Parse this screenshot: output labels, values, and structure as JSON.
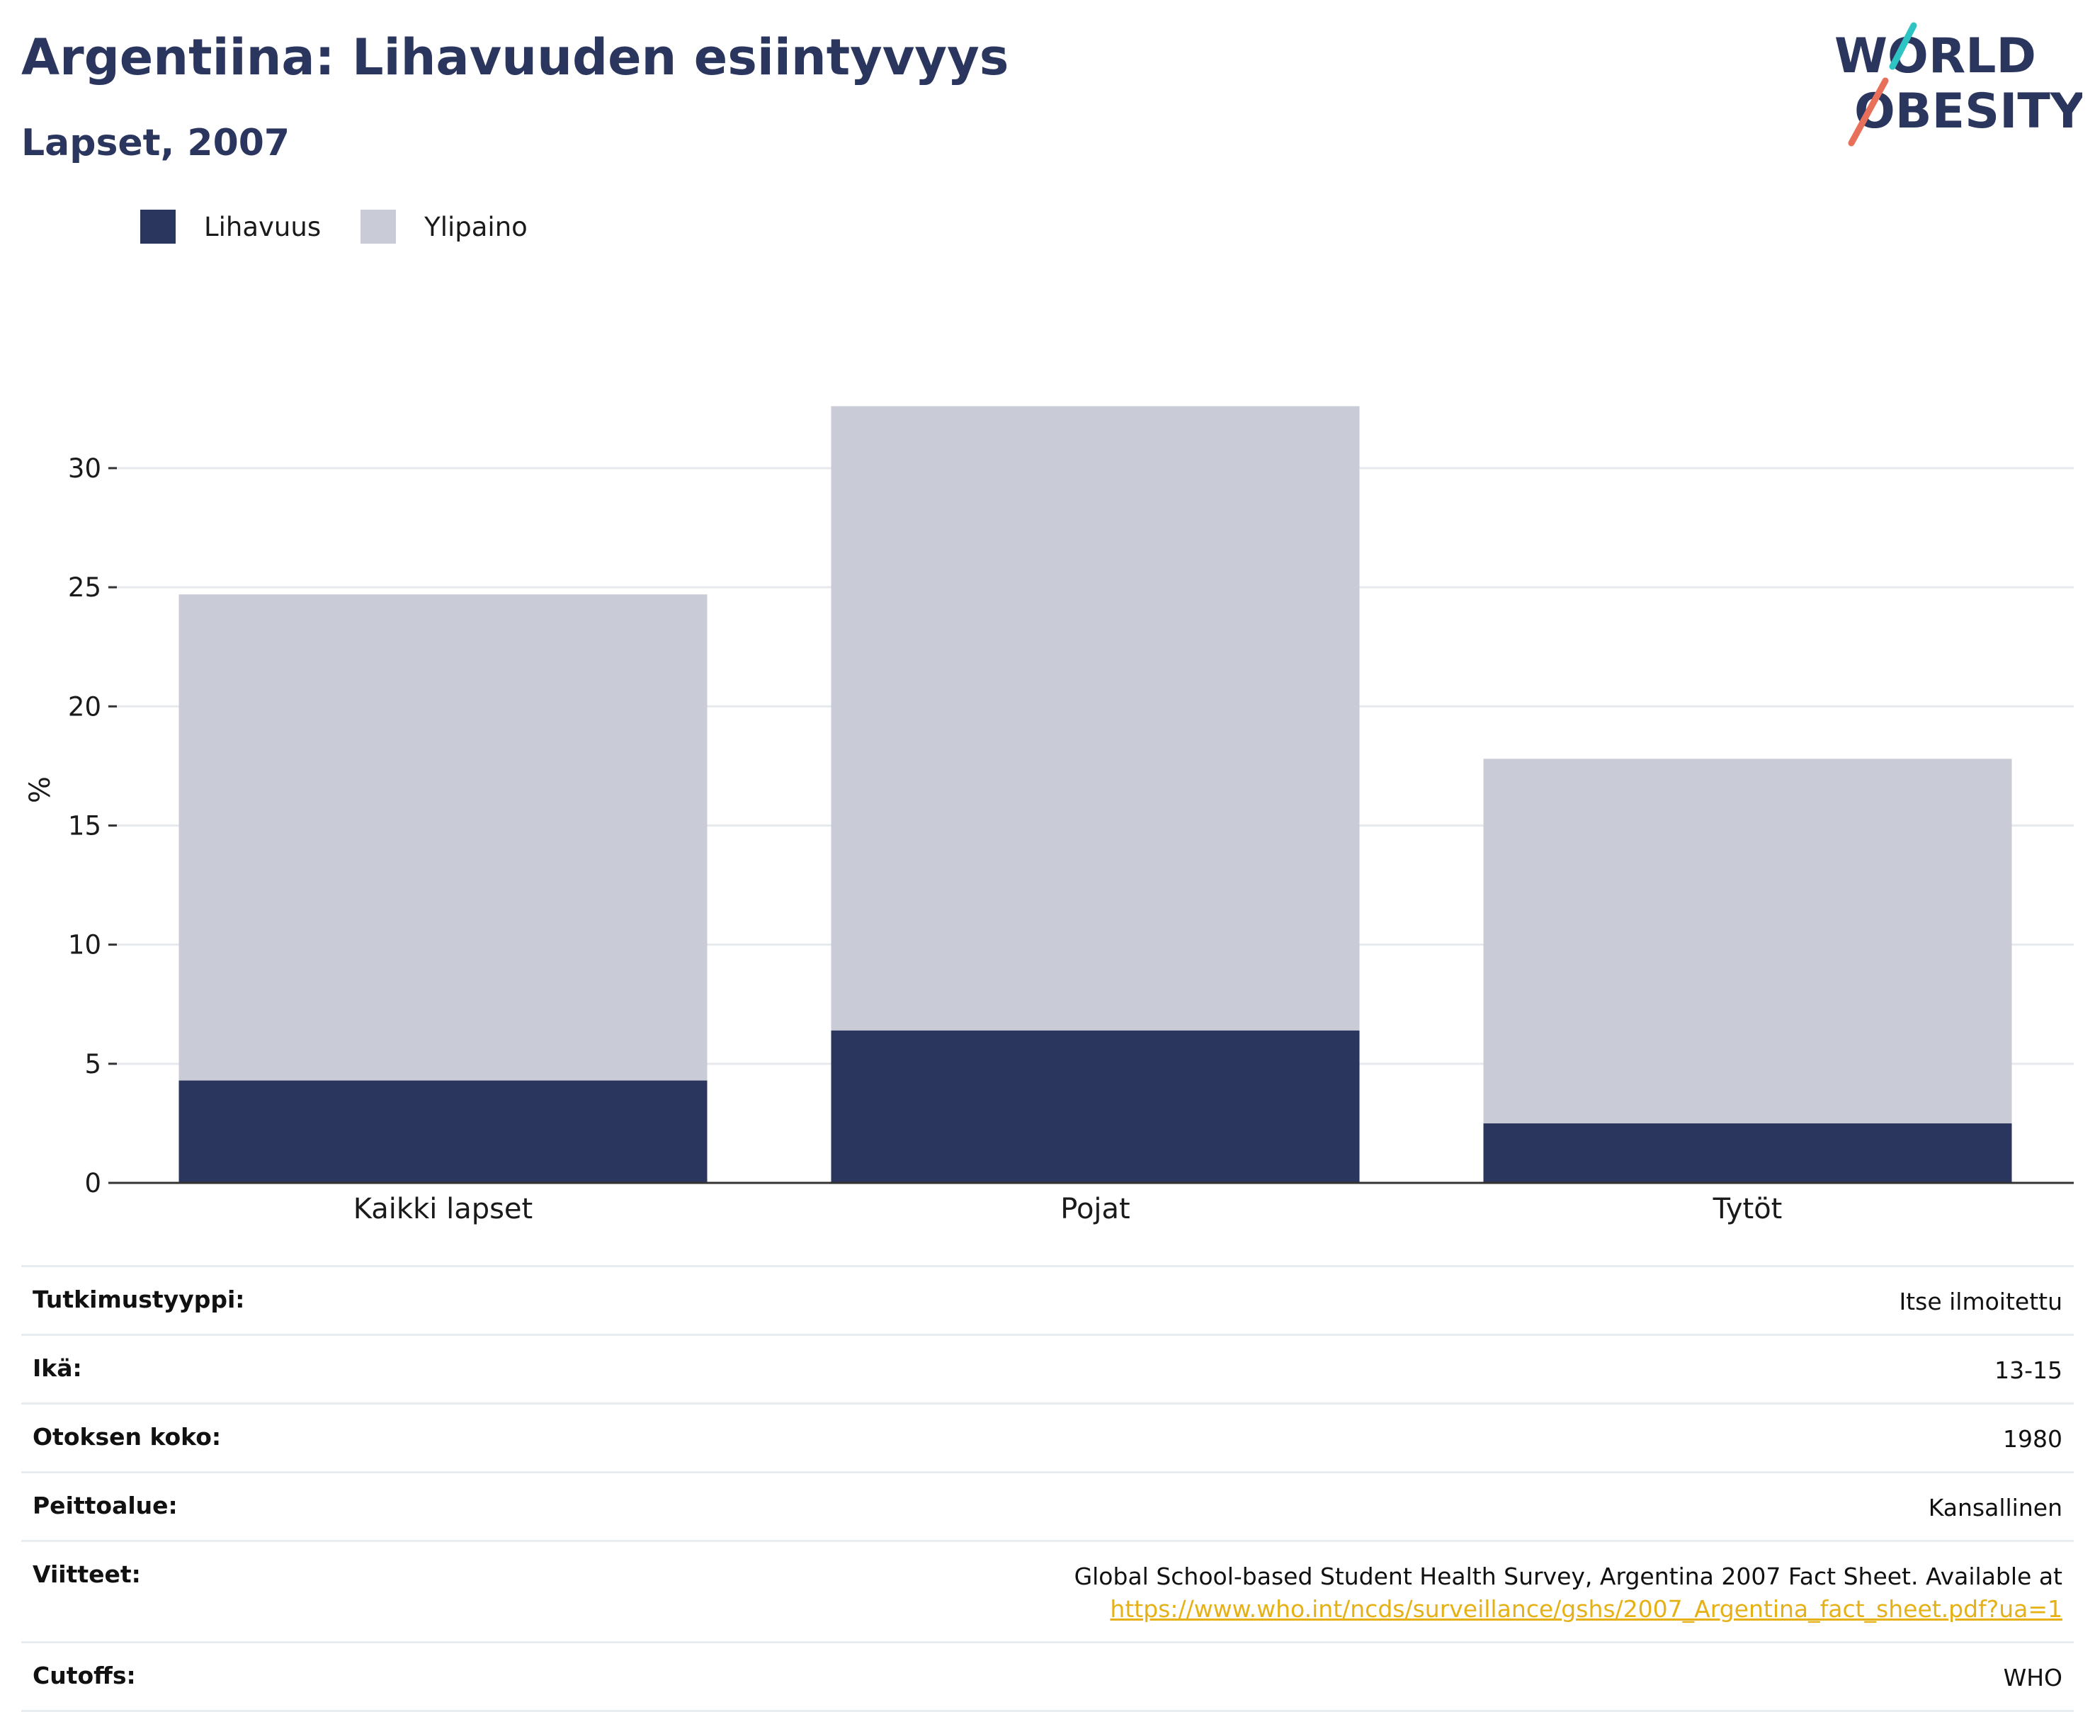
{
  "header": {
    "title": "Argentiina: Lihavuuden esiintyvyys",
    "subtitle": "Lapset, 2007"
  },
  "logo": {
    "line1": "WORLD",
    "line2": "OBESITY",
    "accent_colors": [
      "#2ec4c4",
      "#e8705a"
    ]
  },
  "legend": [
    {
      "label": "Lihavuus",
      "color": "#2b365f"
    },
    {
      "label": "Ylipaino",
      "color": "#c9ccd7"
    }
  ],
  "chart_data": {
    "type": "bar",
    "stacked": true,
    "categories": [
      "Kaikki lapset",
      "Pojat",
      "Tytöt"
    ],
    "series": [
      {
        "name": "Lihavuus",
        "color": "#2b365f",
        "values": [
          4.3,
          6.4,
          2.5
        ]
      },
      {
        "name": "Ylipaino",
        "color": "#c9ccd7",
        "values": [
          20.4,
          26.2,
          15.3
        ]
      }
    ],
    "ylabel": "%",
    "ylim": [
      0,
      33
    ],
    "yticks": [
      0,
      5,
      10,
      15,
      20,
      25,
      30
    ],
    "grid": true,
    "legend_position": "top-left"
  },
  "meta": {
    "rows": [
      {
        "label": "Tutkimustyyppi:",
        "value": "Itse ilmoitettu"
      },
      {
        "label": "Ikä:",
        "value": "13-15"
      },
      {
        "label": "Otoksen koko:",
        "value": "1980"
      },
      {
        "label": "Peittoalue:",
        "value": "Kansallinen"
      },
      {
        "label": "Viitteet:",
        "value": "Global School-based Student Health Survey, Argentina 2007 Fact Sheet. Available at",
        "link": "https://www.who.int/ncds/surveillance/gshs/2007_Argentina_fact_sheet.pdf?ua=1"
      },
      {
        "label": "Cutoffs:",
        "value": "WHO"
      }
    ]
  }
}
